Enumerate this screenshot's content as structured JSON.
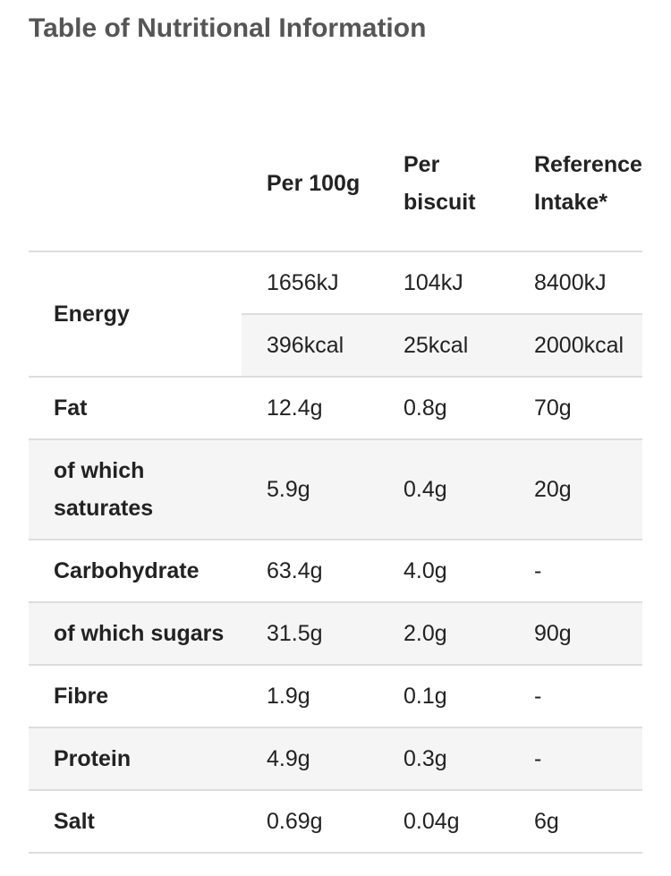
{
  "header": {
    "title": "Table of Nutritional Information"
  },
  "table": {
    "columns": [
      "Per 100g",
      "Per biscuit",
      "Reference Intake*"
    ],
    "rows": [
      {
        "label": "Energy",
        "lines": [
          [
            "1656kJ",
            "104kJ",
            "8400kJ"
          ],
          [
            "396kcal",
            "25kcal",
            "2000kcal"
          ]
        ]
      },
      {
        "label": "Fat",
        "lines": [
          [
            "12.4g",
            "0.8g",
            "70g"
          ]
        ]
      },
      {
        "label": "of which saturates",
        "lines": [
          [
            "5.9g",
            "0.4g",
            "20g"
          ]
        ]
      },
      {
        "label": "Carbohydrate",
        "lines": [
          [
            "63.4g",
            "4.0g",
            "-"
          ]
        ]
      },
      {
        "label": "of which sugars",
        "lines": [
          [
            "31.5g",
            "2.0g",
            "90g"
          ]
        ]
      },
      {
        "label": "Fibre",
        "lines": [
          [
            "1.9g",
            "0.1g",
            "-"
          ]
        ]
      },
      {
        "label": "Protein",
        "lines": [
          [
            "4.9g",
            "0.3g",
            "-"
          ]
        ]
      },
      {
        "label": "Salt",
        "lines": [
          [
            "0.69g",
            "0.04g",
            "6g"
          ]
        ]
      }
    ]
  }
}
